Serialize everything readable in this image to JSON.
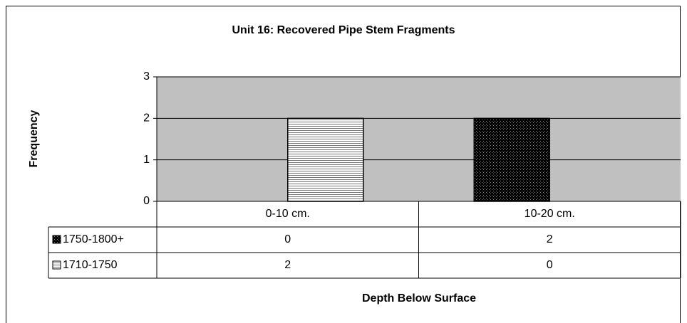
{
  "chart_data": {
    "type": "bar",
    "title": "Unit 16: Recovered Pipe Stem Fragments",
    "x_label": "Depth Below Surface",
    "y_label": "Frequency",
    "categories": [
      "0-10 cm.",
      "10-20 cm."
    ],
    "series": [
      {
        "name": "1750-1800+",
        "color": "#000000",
        "values": [
          0,
          2
        ]
      },
      {
        "name": "1710-1750",
        "color": "#ffffff",
        "values": [
          2,
          0
        ]
      }
    ],
    "ylim": [
      0,
      3
    ],
    "yticks": [
      0,
      1,
      2,
      3
    ],
    "grid": true
  }
}
